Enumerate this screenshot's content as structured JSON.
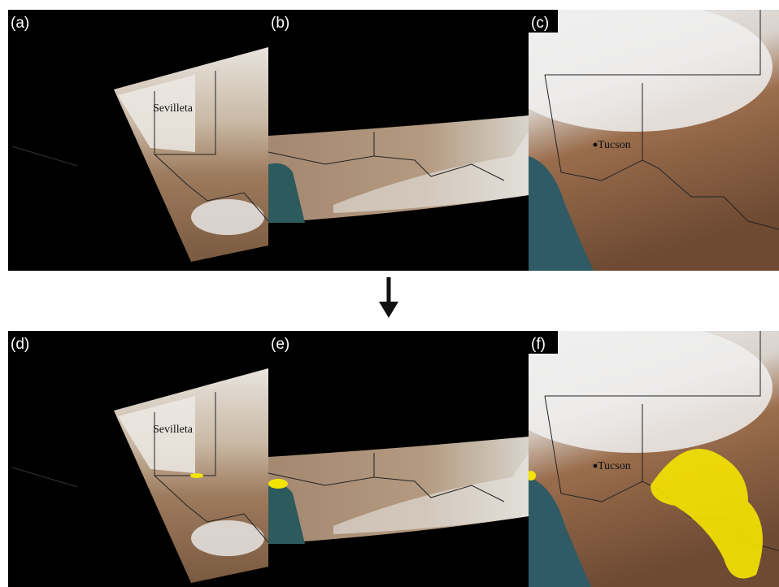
{
  "panels": [
    {
      "label": "(a)",
      "place": "Sevilleta"
    },
    {
      "label": "(b)"
    },
    {
      "label": "(c)",
      "place": "Tucson"
    },
    {
      "label": "(d)",
      "place": "Sevilleta"
    },
    {
      "label": "(e)"
    },
    {
      "label": "(f)",
      "place": "Tucson"
    }
  ]
}
